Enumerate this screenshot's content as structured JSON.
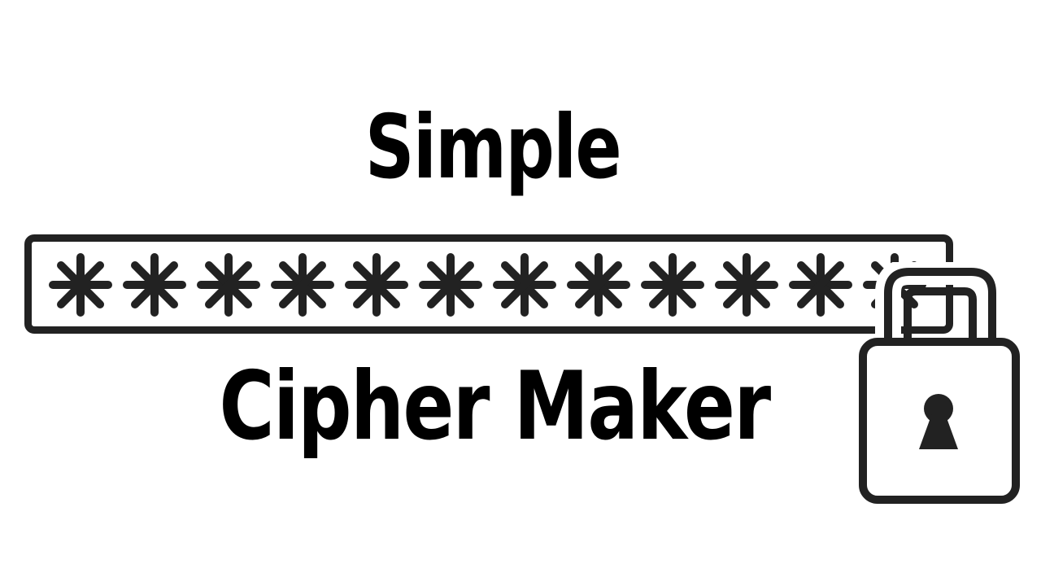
{
  "title": {
    "line1": "Simple",
    "line2": "Cipher Maker"
  },
  "password_field": {
    "masked_value": "************",
    "mask_count": 12,
    "mask_glyph": "asterisk-icon"
  },
  "icons": {
    "lock": "padlock-icon",
    "keyhole": "keyhole-icon"
  },
  "colors": {
    "ink": "#222222",
    "title": "#000000",
    "background": "#ffffff"
  }
}
